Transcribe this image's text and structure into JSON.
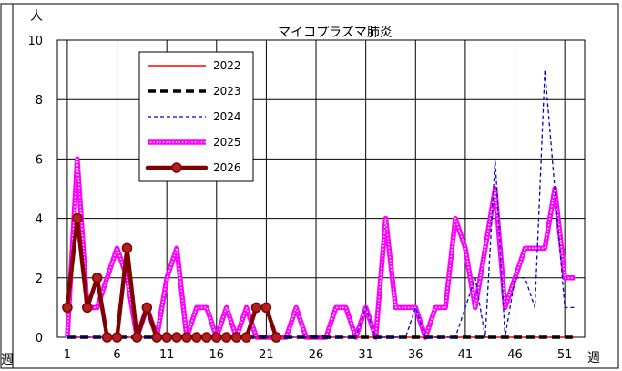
{
  "chart_data": {
    "type": "line",
    "title": "マイコプラズマ肺炎",
    "ylabel": "人",
    "xlabel": "週",
    "left_edge_label": "週",
    "ylim": [
      0,
      10
    ],
    "xlim": [
      0,
      53
    ],
    "y_ticks": [
      0,
      2,
      4,
      6,
      8,
      10
    ],
    "x_ticks": [
      1,
      6,
      11,
      16,
      21,
      26,
      31,
      36,
      41,
      46,
      51
    ],
    "grid": true,
    "legend_position": "top-left",
    "series": [
      {
        "name": "2022",
        "color": "#ff0000",
        "style": "solid",
        "x": [
          1,
          2,
          3,
          4,
          5,
          6,
          7,
          8,
          9,
          10,
          11,
          12,
          13,
          14,
          15,
          16,
          17,
          18,
          19,
          20,
          21,
          22,
          23,
          24,
          25,
          26,
          27,
          28,
          29,
          30,
          31,
          32,
          33,
          34,
          35,
          36,
          37,
          38,
          39,
          40,
          41,
          42,
          43,
          44,
          45,
          46,
          47,
          48,
          49,
          50,
          51,
          52
        ],
        "values": [
          0,
          0,
          0,
          0,
          0,
          0,
          0,
          0,
          0,
          0,
          0,
          0,
          0,
          0,
          0,
          0,
          0,
          0,
          0,
          0,
          0,
          0,
          0,
          0,
          0,
          0,
          0,
          0,
          0,
          0,
          0,
          0,
          0,
          0,
          0,
          0,
          0,
          0,
          0,
          0,
          0,
          0,
          0,
          0,
          0,
          0,
          0,
          0,
          0,
          0,
          0,
          0
        ]
      },
      {
        "name": "2023",
        "color": "#000000",
        "style": "dashed-thick",
        "x": [
          1,
          2,
          3,
          4,
          5,
          6,
          7,
          8,
          9,
          10,
          11,
          12,
          13,
          14,
          15,
          16,
          17,
          18,
          19,
          20,
          21,
          22,
          23,
          24,
          25,
          26,
          27,
          28,
          29,
          30,
          31,
          32,
          33,
          34,
          35,
          36,
          37,
          38,
          39,
          40,
          41,
          42,
          43,
          44,
          45,
          46,
          47,
          48,
          49,
          50,
          51,
          52
        ],
        "values": [
          0,
          0,
          0,
          0,
          0,
          0,
          0,
          0,
          0,
          0,
          0,
          0,
          0,
          0,
          0,
          0,
          0,
          0,
          0,
          0,
          0,
          0,
          0,
          0,
          0,
          0,
          0,
          0,
          0,
          0,
          0,
          0,
          0,
          0,
          0,
          0,
          0,
          0,
          0,
          0,
          0,
          0,
          0,
          0,
          0,
          0,
          0,
          0,
          0,
          0,
          0,
          0
        ]
      },
      {
        "name": "2024",
        "color": "#0000cc",
        "style": "dashed-thin",
        "x": [
          1,
          2,
          3,
          4,
          5,
          6,
          7,
          8,
          9,
          10,
          11,
          12,
          13,
          14,
          15,
          16,
          17,
          18,
          19,
          20,
          21,
          22,
          23,
          24,
          25,
          26,
          27,
          28,
          29,
          30,
          31,
          32,
          33,
          34,
          35,
          36,
          37,
          38,
          39,
          40,
          41,
          42,
          43,
          44,
          45,
          46,
          47,
          48,
          49,
          50,
          51,
          52
        ],
        "values": [
          0,
          0,
          0,
          0,
          0,
          0,
          0,
          0,
          0,
          0,
          0,
          0,
          0,
          0,
          0,
          0,
          0,
          0,
          0,
          0,
          0,
          0,
          0,
          0,
          0,
          0,
          0,
          0,
          0,
          0,
          1,
          0,
          0,
          0,
          0,
          1,
          0,
          0,
          0,
          0,
          1,
          2,
          0,
          6,
          0,
          2,
          2,
          1,
          9,
          5,
          1,
          1
        ]
      },
      {
        "name": "2025",
        "color": "#ff00ff",
        "style": "dotted-thick",
        "x": [
          1,
          2,
          3,
          4,
          5,
          6,
          7,
          8,
          9,
          10,
          11,
          12,
          13,
          14,
          15,
          16,
          17,
          18,
          19,
          20,
          21,
          22,
          23,
          24,
          25,
          26,
          27,
          28,
          29,
          30,
          31,
          32,
          33,
          34,
          35,
          36,
          37,
          38,
          39,
          40,
          41,
          42,
          43,
          44,
          45,
          46,
          47,
          48,
          49,
          50,
          51,
          52
        ],
        "values": [
          0,
          6,
          1,
          1,
          2,
          3,
          2,
          0,
          1,
          0,
          2,
          3,
          0,
          1,
          1,
          0,
          1,
          0,
          1,
          0,
          0,
          0,
          0,
          1,
          0,
          0,
          0,
          1,
          1,
          0,
          1,
          0,
          4,
          1,
          1,
          1,
          0,
          1,
          1,
          4,
          3,
          1,
          3,
          5,
          1,
          2,
          3,
          3,
          3,
          5,
          2,
          2
        ]
      },
      {
        "name": "2026",
        "color": "#800000",
        "style": "solid-marker",
        "x": [
          1,
          2,
          3,
          4,
          5,
          6,
          7,
          8,
          9,
          10,
          11,
          12,
          13,
          14,
          15,
          16,
          17,
          18,
          19,
          20,
          21,
          22
        ],
        "values": [
          1,
          4,
          1,
          2,
          0,
          0,
          3,
          0,
          1,
          0,
          0,
          0,
          0,
          0,
          0,
          0,
          0,
          0,
          0,
          1,
          1,
          0
        ]
      }
    ]
  }
}
